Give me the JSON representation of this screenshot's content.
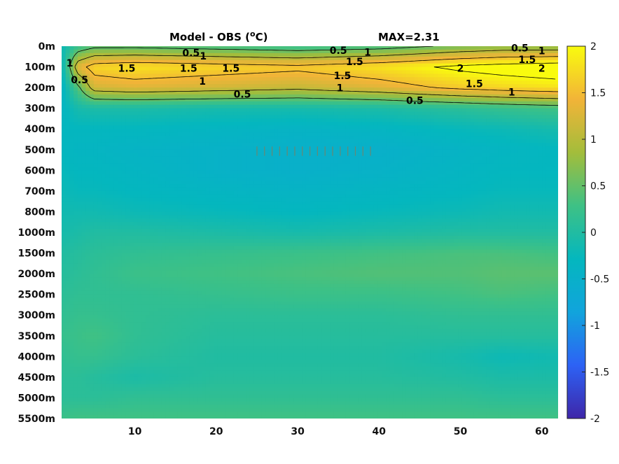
{
  "title": {
    "left": "Model - OBS (",
    "unit_sup": "o",
    "unit_tail": "C)",
    "max": "MAX=2.31"
  },
  "colors": {
    "stops": [
      "#3e26a8",
      "#2d62f5",
      "#11a4dc",
      "#04b7be",
      "#3ec185",
      "#a3bd3b",
      "#f2b438",
      "#f9fb0e"
    ],
    "contour": "#000000"
  },
  "chart_data": {
    "type": "heatmap",
    "title": "Model - OBS (oC)",
    "annotation": "MAX=2.31",
    "x": {
      "range": [
        1,
        62
      ],
      "ticks": [
        "10",
        "20",
        "30",
        "40",
        "50",
        "60"
      ],
      "tick_values": [
        10,
        20,
        30,
        40,
        50,
        60
      ]
    },
    "y": {
      "ticks": [
        "0m",
        "100m",
        "200m",
        "300m",
        "400m",
        "500m",
        "600m",
        "700m",
        "800m",
        "1000m",
        "1500m",
        "2000m",
        "2500m",
        "3000m",
        "3500m",
        "4000m",
        "4500m",
        "5000m",
        "5500m"
      ]
    },
    "colorbar": {
      "range": [
        -2,
        2
      ],
      "ticks": [
        "2",
        "1.5",
        "1",
        "0.5",
        "0",
        "-0.5",
        "-1",
        "-1.5",
        "-2"
      ],
      "tick_values": [
        2,
        1.5,
        1,
        0.5,
        0,
        -0.5,
        -1,
        -1.5,
        -2
      ]
    },
    "field": {
      "x_nodes": [
        1,
        3,
        5,
        10,
        20,
        30,
        40,
        50,
        55,
        62
      ],
      "depth_nodes": [
        "0m",
        "100m",
        "200m",
        "300m",
        "400m",
        "500m",
        "600m",
        "700m",
        "800m",
        "1000m",
        "1500m",
        "2000m",
        "2500m",
        "3000m",
        "3500m",
        "4000m",
        "4500m",
        "5000m",
        "5500m"
      ],
      "values": [
        [
          -0.2,
          0.2,
          0.4,
          0.4,
          0.3,
          0.2,
          0.3,
          0.6,
          0.7,
          0.7
        ],
        [
          -0.3,
          1.3,
          1.7,
          1.8,
          1.7,
          1.6,
          1.8,
          2.1,
          2.2,
          2.3
        ],
        [
          -0.4,
          0.4,
          1.2,
          1.3,
          1.2,
          1.1,
          1.3,
          1.6,
          1.7,
          1.8
        ],
        [
          -0.35,
          -0.1,
          -0.05,
          -0.05,
          -0.1,
          -0.1,
          -0.05,
          0.1,
          0.2,
          0.3
        ],
        [
          -0.3,
          -0.3,
          -0.3,
          -0.3,
          -0.35,
          -0.4,
          -0.35,
          -0.25,
          -0.2,
          -0.1
        ],
        [
          -0.3,
          -0.35,
          -0.35,
          -0.4,
          -0.45,
          -0.5,
          -0.5,
          -0.4,
          -0.35,
          -0.3
        ],
        [
          -0.25,
          -0.3,
          -0.3,
          -0.35,
          -0.45,
          -0.5,
          -0.45,
          -0.35,
          -0.3,
          -0.3
        ],
        [
          -0.2,
          -0.25,
          -0.25,
          -0.3,
          -0.35,
          -0.4,
          -0.35,
          -0.3,
          -0.25,
          -0.25
        ],
        [
          -0.15,
          -0.15,
          -0.15,
          -0.2,
          -0.25,
          -0.3,
          -0.25,
          -0.2,
          -0.15,
          -0.15
        ],
        [
          -0.1,
          -0.05,
          0.0,
          0.0,
          -0.05,
          -0.1,
          -0.05,
          0.0,
          0.0,
          0.0
        ],
        [
          0.0,
          0.05,
          0.1,
          0.15,
          0.2,
          0.25,
          0.3,
          0.35,
          0.35,
          0.3
        ],
        [
          0.05,
          0.1,
          0.15,
          0.25,
          0.3,
          0.35,
          0.4,
          0.4,
          0.45,
          0.45
        ],
        [
          0.1,
          0.15,
          0.15,
          0.15,
          0.2,
          0.25,
          0.25,
          0.3,
          0.35,
          0.3
        ],
        [
          0.15,
          0.2,
          0.2,
          0.15,
          0.1,
          0.1,
          0.1,
          0.15,
          0.15,
          0.15
        ],
        [
          0.2,
          0.25,
          0.3,
          0.15,
          0.05,
          0.05,
          0.05,
          0.05,
          0.05,
          0.05
        ],
        [
          0.15,
          0.2,
          0.2,
          0.1,
          0.0,
          0.0,
          0.0,
          -0.1,
          -0.2,
          -0.15
        ],
        [
          0.1,
          0.1,
          0.05,
          -0.05,
          0.05,
          0.05,
          0.05,
          0.0,
          -0.05,
          -0.05
        ],
        [
          0.1,
          0.1,
          0.1,
          0.15,
          0.15,
          0.15,
          0.15,
          0.15,
          0.1,
          0.1
        ],
        [
          0.25,
          0.3,
          0.3,
          0.3,
          0.3,
          0.3,
          0.3,
          0.3,
          0.3,
          0.3
        ]
      ]
    },
    "contour_levels": [
      0.5,
      1,
      1.5,
      2
    ],
    "contour_labels": [
      {
        "text": "0.5",
        "x": 16.9,
        "depth_index": 0.35
      },
      {
        "text": "1",
        "x": 18.4,
        "depth_index": 0.5
      },
      {
        "text": "0.5",
        "x": 35.0,
        "depth_index": 0.24
      },
      {
        "text": "1",
        "x": 38.6,
        "depth_index": 0.32
      },
      {
        "text": "0.5",
        "x": 57.3,
        "depth_index": 0.12
      },
      {
        "text": "1",
        "x": 60.0,
        "depth_index": 0.25
      },
      {
        "text": "1",
        "x": 2.0,
        "depth_index": 0.85
      },
      {
        "text": "0.5",
        "x": 3.2,
        "depth_index": 1.65
      },
      {
        "text": "1.5",
        "x": 9.0,
        "depth_index": 1.1
      },
      {
        "text": "1.5",
        "x": 16.6,
        "depth_index": 1.1
      },
      {
        "text": "1.5",
        "x": 21.8,
        "depth_index": 1.1
      },
      {
        "text": "1.5",
        "x": 37.0,
        "depth_index": 0.78
      },
      {
        "text": "1.5",
        "x": 35.5,
        "depth_index": 1.45
      },
      {
        "text": "1.5",
        "x": 58.2,
        "depth_index": 0.68
      },
      {
        "text": "2",
        "x": 50.0,
        "depth_index": 1.1
      },
      {
        "text": "2",
        "x": 60.0,
        "depth_index": 1.1
      },
      {
        "text": "1",
        "x": 18.3,
        "depth_index": 1.72
      },
      {
        "text": "1",
        "x": 35.2,
        "depth_index": 2.05
      },
      {
        "text": "1.5",
        "x": 51.7,
        "depth_index": 1.85
      },
      {
        "text": "1",
        "x": 56.3,
        "depth_index": 2.25
      },
      {
        "text": "0.5",
        "x": 23.2,
        "depth_index": 2.35
      },
      {
        "text": "0.5",
        "x": 44.4,
        "depth_index": 2.65
      }
    ]
  }
}
